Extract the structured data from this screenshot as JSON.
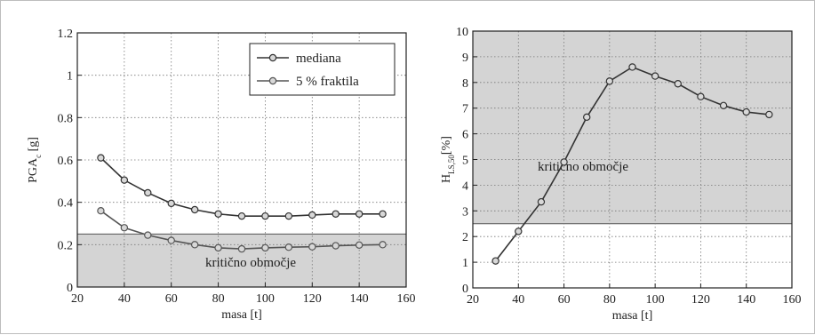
{
  "chart_data": [
    {
      "type": "line",
      "xlabel": "masa [t]",
      "ylabel_main": "PGA",
      "ylabel_sub": "c",
      "ylabel_unit": " [g]",
      "xlim": [
        20,
        160
      ],
      "ylim": [
        0,
        1.2
      ],
      "xticks": [
        20,
        40,
        60,
        80,
        100,
        120,
        140,
        160
      ],
      "yticks": [
        0,
        0.2,
        0.4,
        0.6,
        0.8,
        1,
        1.2
      ],
      "ytick_labels": [
        "0",
        "0.2",
        "0.4",
        "0.6",
        "0.8",
        "1",
        "1.2"
      ],
      "grid": true,
      "legend_position": "top-right",
      "critical_region": {
        "y_from": 0,
        "y_to": 0.25,
        "label": "kritično območje",
        "color": "#d4d4d4"
      },
      "x": [
        30,
        40,
        50,
        60,
        70,
        80,
        90,
        100,
        110,
        120,
        130,
        140,
        150
      ],
      "series": [
        {
          "name": "mediana",
          "color": "#333333",
          "values": [
            0.61,
            0.505,
            0.445,
            0.395,
            0.365,
            0.345,
            0.335,
            0.335,
            0.335,
            0.34,
            0.345,
            0.345,
            0.345
          ]
        },
        {
          "name": "5 % fraktila",
          "color": "#555555",
          "values": [
            0.36,
            0.28,
            0.245,
            0.22,
            0.2,
            0.185,
            0.18,
            0.185,
            0.188,
            0.19,
            0.195,
            0.198,
            0.2
          ]
        }
      ]
    },
    {
      "type": "line",
      "xlabel": "masa [t]",
      "ylabel_main": "H",
      "ylabel_sub": "LS,50",
      "ylabel_unit": "[%]",
      "xlim": [
        20,
        160
      ],
      "ylim": [
        0,
        10
      ],
      "xticks": [
        20,
        40,
        60,
        80,
        100,
        120,
        140,
        160
      ],
      "yticks": [
        0,
        1,
        2,
        3,
        4,
        5,
        6,
        7,
        8,
        9,
        10
      ],
      "ytick_labels": [
        "0",
        "1",
        "2",
        "3",
        "4",
        "5",
        "6",
        "7",
        "8",
        "9",
        "10"
      ],
      "grid": true,
      "critical_region": {
        "y_from": 2.5,
        "y_to": 10,
        "label": "kritično območje",
        "color": "#d4d4d4"
      },
      "x": [
        30,
        40,
        50,
        60,
        70,
        80,
        90,
        100,
        110,
        120,
        130,
        140,
        150
      ],
      "series": [
        {
          "color": "#333333",
          "values": [
            1.05,
            2.2,
            3.35,
            4.9,
            6.65,
            8.05,
            8.6,
            8.25,
            7.95,
            7.45,
            7.1,
            6.85,
            6.75
          ]
        }
      ]
    }
  ]
}
